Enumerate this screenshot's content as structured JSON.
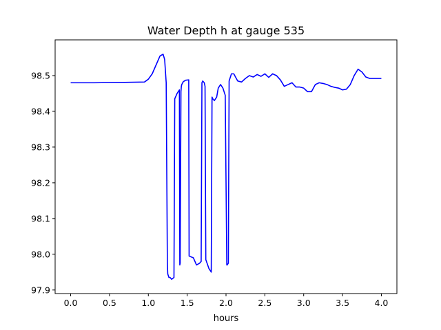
{
  "chart_data": {
    "type": "line",
    "title": "Water Depth h at gauge 535",
    "xlabel": "hours",
    "ylabel": "",
    "xlim": [
      -0.2,
      4.2
    ],
    "ylim": [
      97.89,
      98.6
    ],
    "grid": false,
    "xticks": [
      0.0,
      0.5,
      1.0,
      1.5,
      2.0,
      2.5,
      3.0,
      3.5,
      4.0
    ],
    "xtick_labels": [
      "0.0",
      "0.5",
      "1.0",
      "1.5",
      "2.0",
      "2.5",
      "3.0",
      "3.5",
      "4.0"
    ],
    "yticks": [
      97.9,
      98.0,
      98.1,
      98.2,
      98.3,
      98.4,
      98.5
    ],
    "ytick_labels": [
      "97.9",
      "98.0",
      "98.1",
      "98.2",
      "98.3",
      "98.4",
      "98.5"
    ],
    "series": [
      {
        "color": "#0000ff",
        "x": [
          0.0,
          0.3,
          0.7,
          0.95,
          1.0,
          1.05,
          1.1,
          1.15,
          1.19,
          1.21,
          1.23,
          1.245,
          1.25,
          1.265,
          1.28,
          1.3,
          1.33,
          1.34,
          1.37,
          1.4,
          1.405,
          1.41,
          1.42,
          1.425,
          1.43,
          1.45,
          1.48,
          1.52,
          1.525,
          1.58,
          1.62,
          1.66,
          1.68,
          1.69,
          1.7,
          1.72,
          1.73,
          1.74,
          1.78,
          1.81,
          1.82,
          1.83,
          1.85,
          1.88,
          1.9,
          1.93,
          1.96,
          1.99,
          2.01,
          2.015,
          2.03,
          2.04,
          2.07,
          2.1,
          2.15,
          2.2,
          2.25,
          2.3,
          2.35,
          2.4,
          2.45,
          2.5,
          2.55,
          2.6,
          2.65,
          2.7,
          2.75,
          2.8,
          2.85,
          2.9,
          2.95,
          3.0,
          3.05,
          3.1,
          3.15,
          3.2,
          3.25,
          3.3,
          3.35,
          3.4,
          3.45,
          3.5,
          3.55,
          3.6,
          3.65,
          3.7,
          3.75,
          3.8,
          3.85,
          3.9,
          3.95,
          4.0
        ],
        "y": [
          98.48,
          98.48,
          98.481,
          98.482,
          98.49,
          98.505,
          98.53,
          98.555,
          98.56,
          98.545,
          98.48,
          97.975,
          97.945,
          97.935,
          97.935,
          97.93,
          97.935,
          98.435,
          98.45,
          98.46,
          97.97,
          97.975,
          98.455,
          98.47,
          98.475,
          98.483,
          98.487,
          98.488,
          97.995,
          97.99,
          97.97,
          97.975,
          97.98,
          98.48,
          98.485,
          98.48,
          98.47,
          97.985,
          97.96,
          97.95,
          98.44,
          98.435,
          98.43,
          98.44,
          98.465,
          98.475,
          98.465,
          98.445,
          97.97,
          97.97,
          97.975,
          98.485,
          98.505,
          98.505,
          98.485,
          98.482,
          98.492,
          98.5,
          98.496,
          98.503,
          98.498,
          98.505,
          98.495,
          98.505,
          98.5,
          98.488,
          98.47,
          98.475,
          98.48,
          98.468,
          98.468,
          98.465,
          98.455,
          98.455,
          98.475,
          98.48,
          98.478,
          98.475,
          98.47,
          98.467,
          98.465,
          98.46,
          98.462,
          98.475,
          98.5,
          98.518,
          98.51,
          98.496,
          98.492,
          98.492,
          98.492,
          98.492
        ]
      }
    ]
  }
}
